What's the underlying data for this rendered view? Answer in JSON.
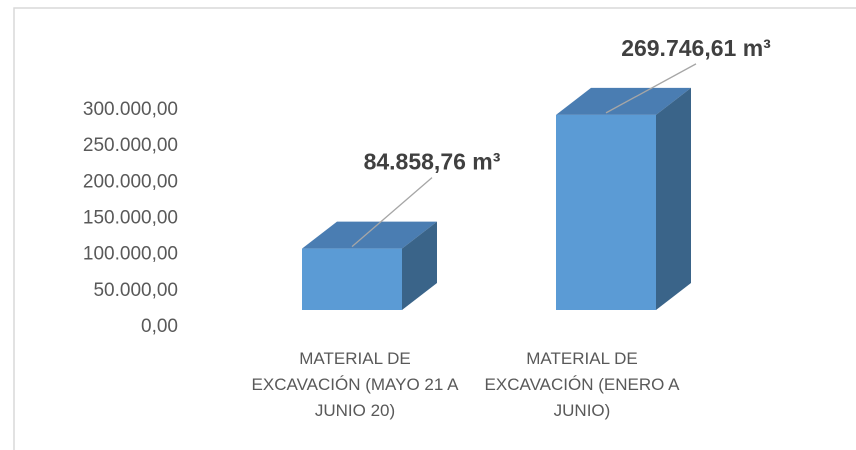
{
  "chart_data": {
    "type": "bar",
    "categories": [
      "MATERIAL DE EXCAVACIÓN (MAYO 21 A JUNIO 20)",
      "MATERIAL DE EXCAVACIÓN (ENERO A JUNIO)"
    ],
    "values": [
      84858.76,
      269746.61
    ],
    "value_labels": [
      "84.858,76 m³",
      "269.746,61 m³"
    ],
    "color": "#5b9bd5",
    "ylim": [
      0,
      300000
    ],
    "yticks": [
      {
        "value": 0,
        "label": "0,00"
      },
      {
        "value": 50000,
        "label": "50.000,00"
      },
      {
        "value": 100000,
        "label": "100.000,00"
      },
      {
        "value": 150000,
        "label": "150.000,00"
      },
      {
        "value": 200000,
        "label": "200.000,00"
      },
      {
        "value": 250000,
        "label": "250.000,00"
      },
      {
        "value": 300000,
        "label": "300.000,00"
      }
    ],
    "grid": false
  }
}
